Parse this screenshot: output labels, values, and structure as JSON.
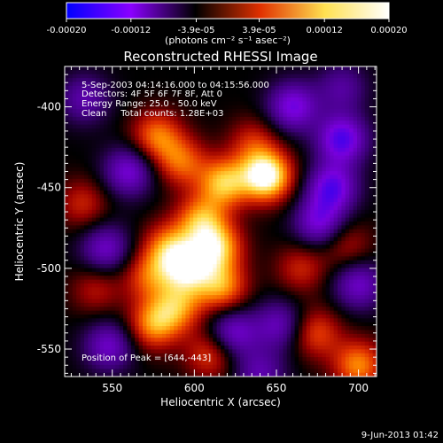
{
  "chart_data": {
    "type": "heatmap",
    "title": "Reconstructed RHESSI Image",
    "xlabel": "Heliocentric X (arcsec)",
    "ylabel": "Heliocentric Y (arcsec)",
    "xlim": [
      521,
      711
    ],
    "ylim": [
      -567,
      -375
    ],
    "x_ticks": [
      550,
      600,
      650,
      700
    ],
    "y_ticks": [
      -400,
      -450,
      -500,
      -550
    ],
    "colorbar": {
      "unit": "(photons cm⁻² s⁻¹ asec⁻²)",
      "range": [
        -0.0002,
        0.0002
      ],
      "ticks": [
        "-0.00020",
        "-0.00012",
        "-3.9e-05",
        "3.9e-05",
        "0.00012",
        "0.00020"
      ],
      "colors": [
        "#0000ff",
        "#8a00ff",
        "#000000",
        "#e03000",
        "#ffe050",
        "#ffffff"
      ]
    },
    "annotations": [
      "5-Sep-2003 04:14:16.000 to 04:15:56.000",
      "Detectors: 4F 5F 6F 7F 8F, Att 0",
      "Energy Range: 25.0 - 50.0 keV",
      "Clean     Total counts: 1.28E+03"
    ],
    "peak_label": "Position of Peak = [644,-443]",
    "peak": [
      644,
      -443
    ],
    "blobs": [
      {
        "x": 644,
        "y": -443,
        "v": 1.0
      },
      {
        "x": 618,
        "y": -447,
        "v": 0.7
      },
      {
        "x": 604,
        "y": -470,
        "v": 0.6
      },
      {
        "x": 614,
        "y": -487,
        "v": 0.7
      },
      {
        "x": 584,
        "y": -487,
        "v": 0.55
      },
      {
        "x": 596,
        "y": -500,
        "v": 0.75
      },
      {
        "x": 572,
        "y": -505,
        "v": 0.45
      },
      {
        "x": 617,
        "y": -512,
        "v": 0.6
      },
      {
        "x": 590,
        "y": -524,
        "v": 0.55
      },
      {
        "x": 575,
        "y": -535,
        "v": 0.6
      },
      {
        "x": 610,
        "y": -553,
        "v": 0.45
      },
      {
        "x": 577,
        "y": -418,
        "v": 0.55
      },
      {
        "x": 592,
        "y": -434,
        "v": 0.5
      },
      {
        "x": 636,
        "y": -422,
        "v": 0.35
      },
      {
        "x": 532,
        "y": -460,
        "v": 0.35
      },
      {
        "x": 540,
        "y": -513,
        "v": 0.3
      },
      {
        "x": 665,
        "y": -500,
        "v": 0.35
      },
      {
        "x": 674,
        "y": -540,
        "v": 0.45
      },
      {
        "x": 693,
        "y": -486,
        "v": 0.3
      },
      {
        "x": 700,
        "y": -560,
        "v": 0.6
      },
      {
        "x": 560,
        "y": -440,
        "v": -0.55
      },
      {
        "x": 546,
        "y": -488,
        "v": -0.5
      },
      {
        "x": 660,
        "y": -400,
        "v": -0.6
      },
      {
        "x": 690,
        "y": -420,
        "v": -0.7
      },
      {
        "x": 684,
        "y": -450,
        "v": -0.65
      },
      {
        "x": 676,
        "y": -472,
        "v": -0.55
      },
      {
        "x": 700,
        "y": -510,
        "v": -0.5
      },
      {
        "x": 652,
        "y": -535,
        "v": -0.45
      },
      {
        "x": 623,
        "y": -540,
        "v": -0.55
      },
      {
        "x": 548,
        "y": -548,
        "v": -0.5
      },
      {
        "x": 533,
        "y": -395,
        "v": -0.4
      },
      {
        "x": 690,
        "y": -388,
        "v": -0.35
      },
      {
        "x": 640,
        "y": -565,
        "v": -0.4
      }
    ]
  },
  "footer": {
    "date_stamp": "9-Jun-2013 01:42"
  }
}
